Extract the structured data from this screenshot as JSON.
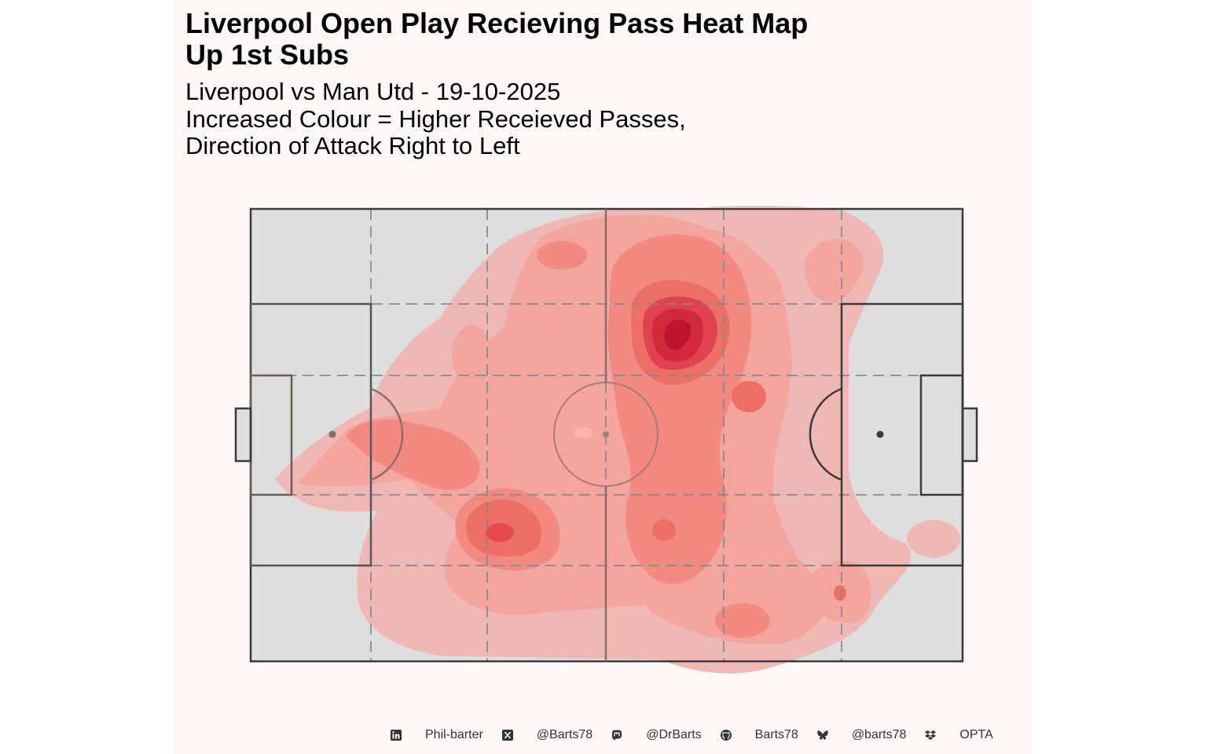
{
  "title_line1": "Liverpool Open Play Recieving Pass Heat Map",
  "title_line2": "Up 1st Subs",
  "subtitle_line1": "Liverpool vs Man Utd - 19-10-2025",
  "subtitle_line2": "Increased Colour = Higher Receieved Passes,",
  "subtitle_line3": "Direction of Attack Right to Left",
  "colors": {
    "panel_bg": "#fef8f8",
    "pitch_fill": "#dedede",
    "pitch_line": "#3a3a3a",
    "zone_line": "#7f8c8d",
    "heat_low": "#efb8b4",
    "heat_high": "#c0102b"
  },
  "footer": [
    {
      "icon": "linkedin-icon",
      "text": "Phil-barter"
    },
    {
      "icon": "x-twitter-icon",
      "text": "@Barts78"
    },
    {
      "icon": "mastodon-icon",
      "text": "@DrBarts"
    },
    {
      "icon": "github-icon",
      "text": "Barts78"
    },
    {
      "icon": "bluesky-icon",
      "text": "@barts78"
    },
    {
      "icon": "dropbox-icon",
      "text": "OPTA"
    }
  ]
}
